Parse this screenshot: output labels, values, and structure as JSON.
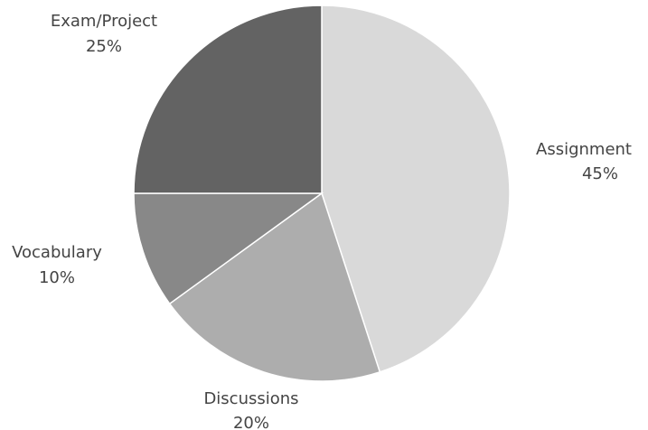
{
  "chart_data": {
    "type": "pie",
    "slices": [
      {
        "label": "Assignment",
        "value": 45,
        "percent_label": "45%",
        "color": "#d9d9d9"
      },
      {
        "label": "Discussions",
        "value": 20,
        "percent_label": "20%",
        "color": "#adadad"
      },
      {
        "label": "Vocabulary",
        "value": 10,
        "percent_label": "10%",
        "color": "#888888"
      },
      {
        "label": "Exam/Project",
        "value": 25,
        "percent_label": "25%",
        "color": "#636363"
      }
    ],
    "start_angle_deg": 0,
    "direction": "clockwise",
    "legend": "none"
  }
}
